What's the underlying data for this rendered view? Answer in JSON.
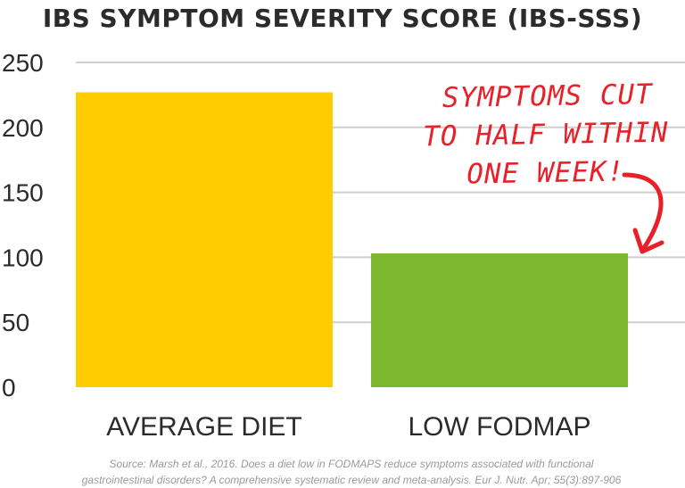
{
  "chart_data": {
    "type": "bar",
    "title": "IBS SYMPTOM SEVERITY SCORE (IBS-SSS)",
    "categories": [
      "AVERAGE DIET",
      "LOW FODMAP"
    ],
    "values": [
      227,
      103
    ],
    "ylim": [
      0,
      250
    ],
    "y_ticks": [
      0,
      50,
      100,
      150,
      200,
      250
    ],
    "y_tick_labels": [
      "0",
      "50",
      "100",
      "150",
      "200",
      "250"
    ],
    "grid": true,
    "bar_colors": [
      "#ffcc00",
      "#7db72f"
    ],
    "annotation": {
      "lines": [
        "SYMPTOMS CUT",
        "TO HALF WITHIN",
        "ONE WEEK!"
      ],
      "color": "#e8202a",
      "points_to": "LOW FODMAP"
    }
  },
  "source": {
    "line1": "Source: Marsh et al., 2016. Does a diet low in FODMAPS reduce symptoms associated with functional",
    "line2": "gastrointestinal disorders? A comprehensive systematic review and meta-analysis. Eur J. Nutr. Apr; 55(3):897-906"
  }
}
